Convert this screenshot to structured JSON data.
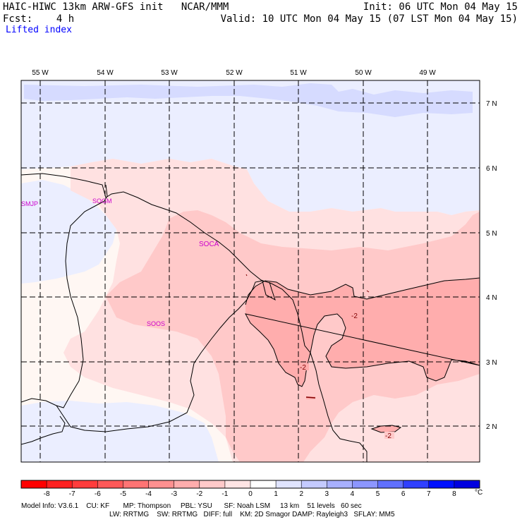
{
  "header": {
    "title_left": "HAIC-HIWC 13km ARW-GFS init   NCAR/MMM",
    "init": "Init: 06 UTC Mon 04 May 15",
    "fcst": "Fcst:    4 h",
    "valid": "Valid: 10 UTC Mon 04 May 15 (07 LST Mon 04 May 15)",
    "field": "Lifted index"
  },
  "map": {
    "lon_labels": [
      "55 W",
      "54 W",
      "53 W",
      "52 W",
      "51 W",
      "50 W",
      "49 W"
    ],
    "lat_labels": [
      "7 N",
      "6 N",
      "5 N",
      "4 N",
      "3 N",
      "2 N"
    ],
    "stations": [
      "SMJP",
      "SOGM",
      "SOCA",
      "SOOS"
    ],
    "contour_labels": [
      "-2",
      "-2",
      "-2"
    ],
    "colors": {
      "pos_pale": "#ebeeff",
      "pos_1": "#d6dbff",
      "neutral": "#fff7f3",
      "neg_1": "#ffe1e1",
      "neg_2": "#ffc9c9",
      "neg_3": "#ffadad",
      "station": "#cc00cc"
    }
  },
  "colorbar": {
    "ticks": [
      "-8",
      "-7",
      "-6",
      "-5",
      "-4",
      "-3",
      "-2",
      "-1",
      "0",
      "1",
      "2",
      "3",
      "4",
      "5",
      "6",
      "7",
      "8"
    ],
    "unit": "°C",
    "colors": [
      "#ff0000",
      "#ff2020",
      "#ff3c3c",
      "#ff5858",
      "#ff7474",
      "#ff9090",
      "#ffadad",
      "#ffc9c9",
      "#ffe4e4",
      "#ffffff",
      "#e0e4ff",
      "#c4caff",
      "#a8b0ff",
      "#8c96ff",
      "#6070ff",
      "#3040ff",
      "#0010ff",
      "#0000e0"
    ]
  },
  "footer": {
    "line1": "Model Info: V3.6.1    CU: KF       MP: Thompson     PBL: YSU      SF: Noah LSM     13 km    51 levels   60 sec",
    "line2": "LW: RRTMG    SW: RRTMG   DIFF: full    KM: 2D Smagor DAMP: Rayleigh3   SFLAY: MM5"
  }
}
